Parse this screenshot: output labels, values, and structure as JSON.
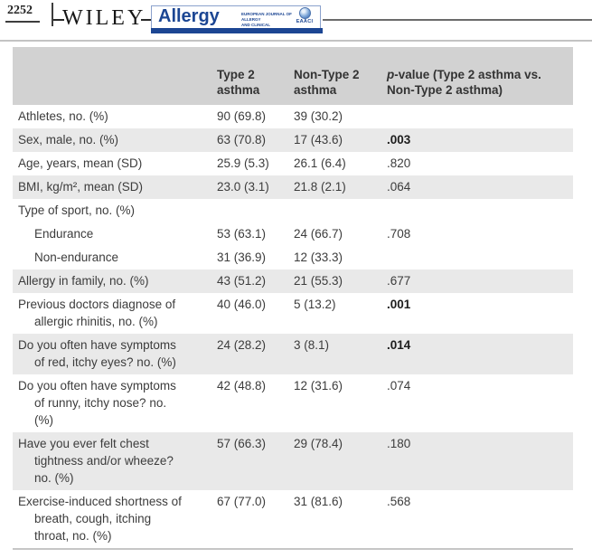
{
  "page": {
    "number": "2252",
    "publisher": "WILEY"
  },
  "journal": {
    "name": "Allergy",
    "subtitle_line1": "EUROPEAN JOURNAL OF ALLERGY",
    "subtitle_line2": "AND CLINICAL IMMUNOLOGY",
    "society": "EAACI",
    "brand_blue": "#1c4693"
  },
  "table": {
    "colors": {
      "header_bg": "#d2d2d2",
      "stripe_bg": "#e9e9e9"
    },
    "header": {
      "col_type2": "Type 2 asthma",
      "col_non_type2": "Non-Type 2 asthma",
      "p_italic": "p",
      "p_rest": "-value",
      "p_sub": "(Type 2 asthma vs. Non-Type 2 asthma)"
    },
    "rows": [
      {
        "label": "Athletes, no. (%)",
        "type2": "90 (69.8)",
        "non_type2": "39 (30.2)",
        "p": "",
        "shaded": false,
        "indent": false,
        "p_bold": false
      },
      {
        "label": "Sex, male, no. (%)",
        "type2": "63 (70.8)",
        "non_type2": "17 (43.6)",
        "p": ".003",
        "shaded": true,
        "indent": false,
        "p_bold": true
      },
      {
        "label": "Age, years, mean (SD)",
        "type2": "25.9 (5.3)",
        "non_type2": "26.1 (6.4)",
        "p": ".820",
        "shaded": false,
        "indent": false,
        "p_bold": false
      },
      {
        "label": "BMI, kg/m², mean (SD)",
        "type2": "23.0 (3.1)",
        "non_type2": "21.8 (2.1)",
        "p": ".064",
        "shaded": true,
        "indent": false,
        "p_bold": false
      },
      {
        "label": "Type of sport, no. (%)",
        "type2": "",
        "non_type2": "",
        "p": "",
        "shaded": false,
        "indent": false,
        "p_bold": false
      },
      {
        "label": "Endurance",
        "type2": "53 (63.1)",
        "non_type2": "24 (66.7)",
        "p": ".708",
        "shaded": false,
        "indent": true,
        "p_bold": false
      },
      {
        "label": "Non-endurance",
        "type2": "31 (36.9)",
        "non_type2": "12 (33.3)",
        "p": "",
        "shaded": false,
        "indent": true,
        "p_bold": false
      },
      {
        "label": "Allergy in family, no. (%)",
        "type2": "43 (51.2)",
        "non_type2": "21 (55.3)",
        "p": ".677",
        "shaded": true,
        "indent": false,
        "p_bold": false
      },
      {
        "label": "Previous doctors diagnose of allergic rhinitis, no. (%)",
        "type2": "40 (46.0)",
        "non_type2": "5 (13.2)",
        "p": ".001",
        "shaded": false,
        "indent": false,
        "p_bold": true
      },
      {
        "label": "Do you often have symptoms of red, itchy eyes? no. (%)",
        "type2": "24 (28.2)",
        "non_type2": "3 (8.1)",
        "p": ".014",
        "shaded": true,
        "indent": false,
        "p_bold": true
      },
      {
        "label": "Do you often have symptoms of runny, itchy nose? no. (%)",
        "type2": "42 (48.8)",
        "non_type2": "12 (31.6)",
        "p": ".074",
        "shaded": false,
        "indent": false,
        "p_bold": false
      },
      {
        "label": "Have you ever felt chest tightness and/or wheeze? no. (%)",
        "type2": "57 (66.3)",
        "non_type2": "29 (78.4)",
        "p": ".180",
        "shaded": true,
        "indent": false,
        "p_bold": false
      },
      {
        "label": "Exercise-induced shortness of breath, cough, itching throat, no. (%)",
        "type2": "67 (77.0)",
        "non_type2": "31 (81.6)",
        "p": ".568",
        "shaded": false,
        "indent": false,
        "p_bold": false
      }
    ]
  }
}
